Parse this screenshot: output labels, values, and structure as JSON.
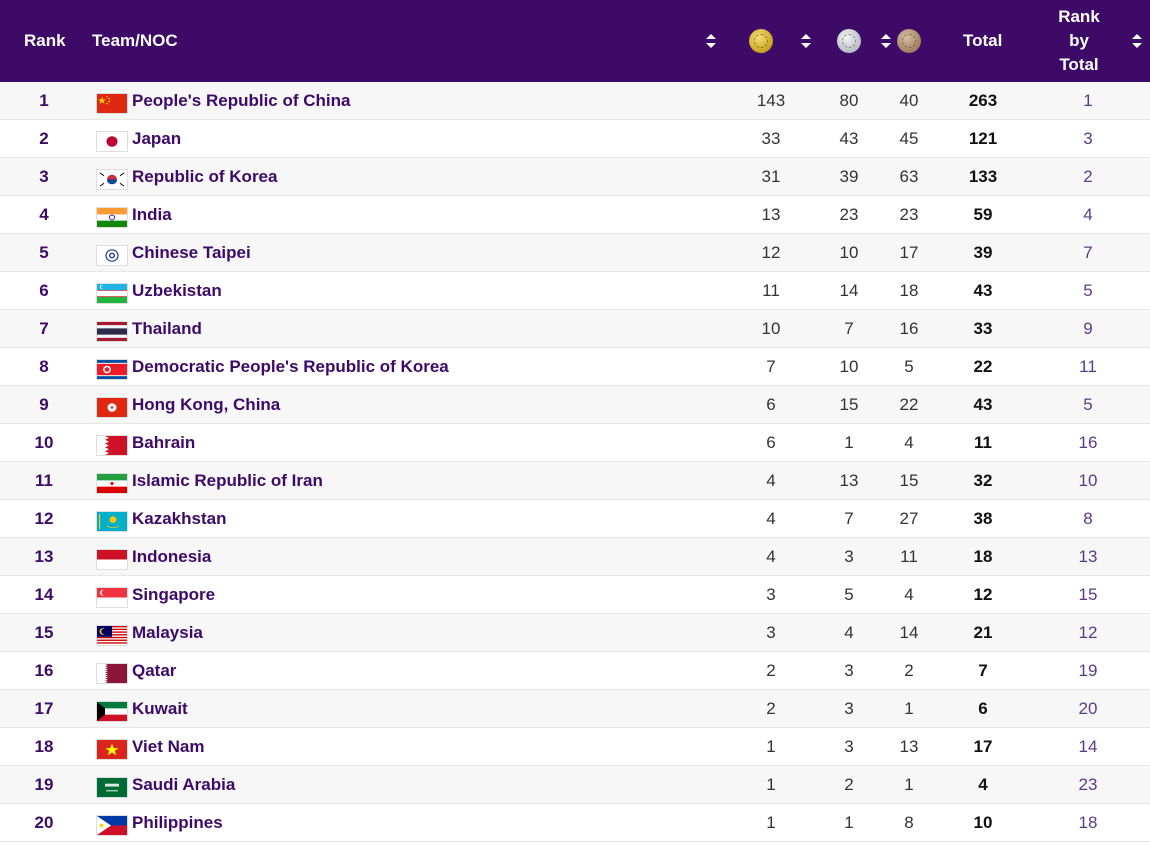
{
  "header": {
    "rank": "Rank",
    "team": "Team/NOC",
    "gold_icon": "gold-medal-icon",
    "silver_icon": "silver-medal-icon",
    "bronze_icon": "bronze-medal-icon",
    "total": "Total",
    "rank_by_total_1": "Rank",
    "rank_by_total_2": "by",
    "rank_by_total_3": "Total"
  },
  "rows": [
    {
      "rank": "1",
      "name": "People's Republic of China",
      "flag": "CHN",
      "gold": "143",
      "silver": "80",
      "bronze": "40",
      "total": "263",
      "rbt": "1"
    },
    {
      "rank": "2",
      "name": "Japan",
      "flag": "JPN",
      "gold": "33",
      "silver": "43",
      "bronze": "45",
      "total": "121",
      "rbt": "3"
    },
    {
      "rank": "3",
      "name": "Republic of Korea",
      "flag": "KOR",
      "gold": "31",
      "silver": "39",
      "bronze": "63",
      "total": "133",
      "rbt": "2"
    },
    {
      "rank": "4",
      "name": "India",
      "flag": "IND",
      "gold": "13",
      "silver": "23",
      "bronze": "23",
      "total": "59",
      "rbt": "4"
    },
    {
      "rank": "5",
      "name": "Chinese Taipei",
      "flag": "TPE",
      "gold": "12",
      "silver": "10",
      "bronze": "17",
      "total": "39",
      "rbt": "7"
    },
    {
      "rank": "6",
      "name": "Uzbekistan",
      "flag": "UZB",
      "gold": "11",
      "silver": "14",
      "bronze": "18",
      "total": "43",
      "rbt": "5"
    },
    {
      "rank": "7",
      "name": "Thailand",
      "flag": "THA",
      "gold": "10",
      "silver": "7",
      "bronze": "16",
      "total": "33",
      "rbt": "9"
    },
    {
      "rank": "8",
      "name": "Democratic People's Republic of Korea",
      "flag": "PRK",
      "gold": "7",
      "silver": "10",
      "bronze": "5",
      "total": "22",
      "rbt": "11"
    },
    {
      "rank": "9",
      "name": "Hong Kong, China",
      "flag": "HKG",
      "gold": "6",
      "silver": "15",
      "bronze": "22",
      "total": "43",
      "rbt": "5"
    },
    {
      "rank": "10",
      "name": "Bahrain",
      "flag": "BRN",
      "gold": "6",
      "silver": "1",
      "bronze": "4",
      "total": "11",
      "rbt": "16"
    },
    {
      "rank": "11",
      "name": "Islamic Republic of Iran",
      "flag": "IRI",
      "gold": "4",
      "silver": "13",
      "bronze": "15",
      "total": "32",
      "rbt": "10"
    },
    {
      "rank": "12",
      "name": "Kazakhstan",
      "flag": "KAZ",
      "gold": "4",
      "silver": "7",
      "bronze": "27",
      "total": "38",
      "rbt": "8"
    },
    {
      "rank": "13",
      "name": "Indonesia",
      "flag": "INA",
      "gold": "4",
      "silver": "3",
      "bronze": "11",
      "total": "18",
      "rbt": "13"
    },
    {
      "rank": "14",
      "name": "Singapore",
      "flag": "SGP",
      "gold": "3",
      "silver": "5",
      "bronze": "4",
      "total": "12",
      "rbt": "15"
    },
    {
      "rank": "15",
      "name": "Malaysia",
      "flag": "MAS",
      "gold": "3",
      "silver": "4",
      "bronze": "14",
      "total": "21",
      "rbt": "12"
    },
    {
      "rank": "16",
      "name": "Qatar",
      "flag": "QAT",
      "gold": "2",
      "silver": "3",
      "bronze": "2",
      "total": "7",
      "rbt": "19"
    },
    {
      "rank": "17",
      "name": "Kuwait",
      "flag": "KUW",
      "gold": "2",
      "silver": "3",
      "bronze": "1",
      "total": "6",
      "rbt": "20"
    },
    {
      "rank": "18",
      "name": "Viet Nam",
      "flag": "VIE",
      "gold": "1",
      "silver": "3",
      "bronze": "13",
      "total": "17",
      "rbt": "14"
    },
    {
      "rank": "19",
      "name": "Saudi Arabia",
      "flag": "KSA",
      "gold": "1",
      "silver": "2",
      "bronze": "1",
      "total": "4",
      "rbt": "23"
    },
    {
      "rank": "20",
      "name": "Philippines",
      "flag": "PHI",
      "gold": "1",
      "silver": "1",
      "bronze": "8",
      "total": "10",
      "rbt": "18"
    }
  ],
  "colors": {
    "header_bg": "#3d0a68",
    "name_text": "#3d0a68",
    "rank_by_total_text": "#5a3a86"
  }
}
